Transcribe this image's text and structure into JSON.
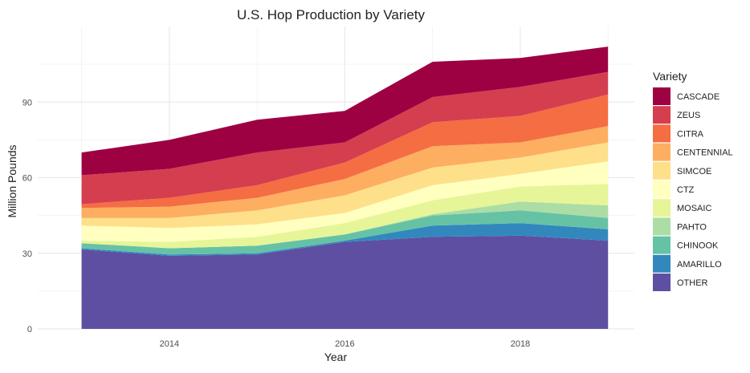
{
  "chart_data": {
    "type": "area",
    "stacked": true,
    "title": "U.S. Hop Production by Variety",
    "xlabel": "Year",
    "ylabel": "Million Pounds",
    "x": [
      2013,
      2014,
      2015,
      2016,
      2017,
      2018,
      2019
    ],
    "xlim": [
      2012.5,
      2019.3
    ],
    "ylim": [
      0,
      120
    ],
    "xticks": [
      2014,
      2016,
      2018
    ],
    "yticks": [
      0,
      30,
      60,
      90
    ],
    "grid": true,
    "legend_title": "Variety",
    "legend_position": "right",
    "series": [
      {
        "name": "OTHER",
        "color": "#5E4FA2",
        "values": [
          31.5,
          29.0,
          29.5,
          34.5,
          36.5,
          37.0,
          35.0
        ]
      },
      {
        "name": "AMARILLO",
        "color": "#3288BD",
        "values": [
          0.5,
          0.5,
          0.5,
          0.5,
          4.5,
          5.0,
          4.5
        ]
      },
      {
        "name": "CHINOOK",
        "color": "#66C2A5",
        "values": [
          2.0,
          2.5,
          3.0,
          2.5,
          4.0,
          5.0,
          4.5
        ]
      },
      {
        "name": "PAHTO",
        "color": "#ABDDA4",
        "values": [
          0.0,
          0.0,
          0.0,
          0.0,
          0.5,
          3.5,
          5.0
        ]
      },
      {
        "name": "MOSAIC",
        "color": "#E6F598",
        "values": [
          1.0,
          2.5,
          3.5,
          4.5,
          5.5,
          6.0,
          8.5
        ]
      },
      {
        "name": "CTZ",
        "color": "#FFFFBF",
        "values": [
          6.0,
          5.5,
          5.0,
          4.0,
          6.0,
          5.0,
          9.0
        ]
      },
      {
        "name": "SIMCOE",
        "color": "#FEE08B",
        "values": [
          3.0,
          4.0,
          5.5,
          7.0,
          7.0,
          6.5,
          7.5
        ]
      },
      {
        "name": "CENTENNIAL",
        "color": "#FDAE61",
        "values": [
          4.0,
          4.5,
          5.0,
          6.5,
          8.5,
          6.0,
          6.5
        ]
      },
      {
        "name": "CITRA",
        "color": "#F46D43",
        "values": [
          1.5,
          3.5,
          5.0,
          6.5,
          9.5,
          10.5,
          12.5
        ]
      },
      {
        "name": "ZEUS",
        "color": "#D53E4F",
        "values": [
          11.5,
          11.5,
          13.0,
          8.0,
          10.0,
          11.5,
          9.0
        ]
      },
      {
        "name": "CASCADE",
        "color": "#9E0142",
        "values": [
          9.0,
          11.5,
          13.0,
          12.5,
          14.0,
          11.5,
          10.0
        ]
      }
    ]
  }
}
